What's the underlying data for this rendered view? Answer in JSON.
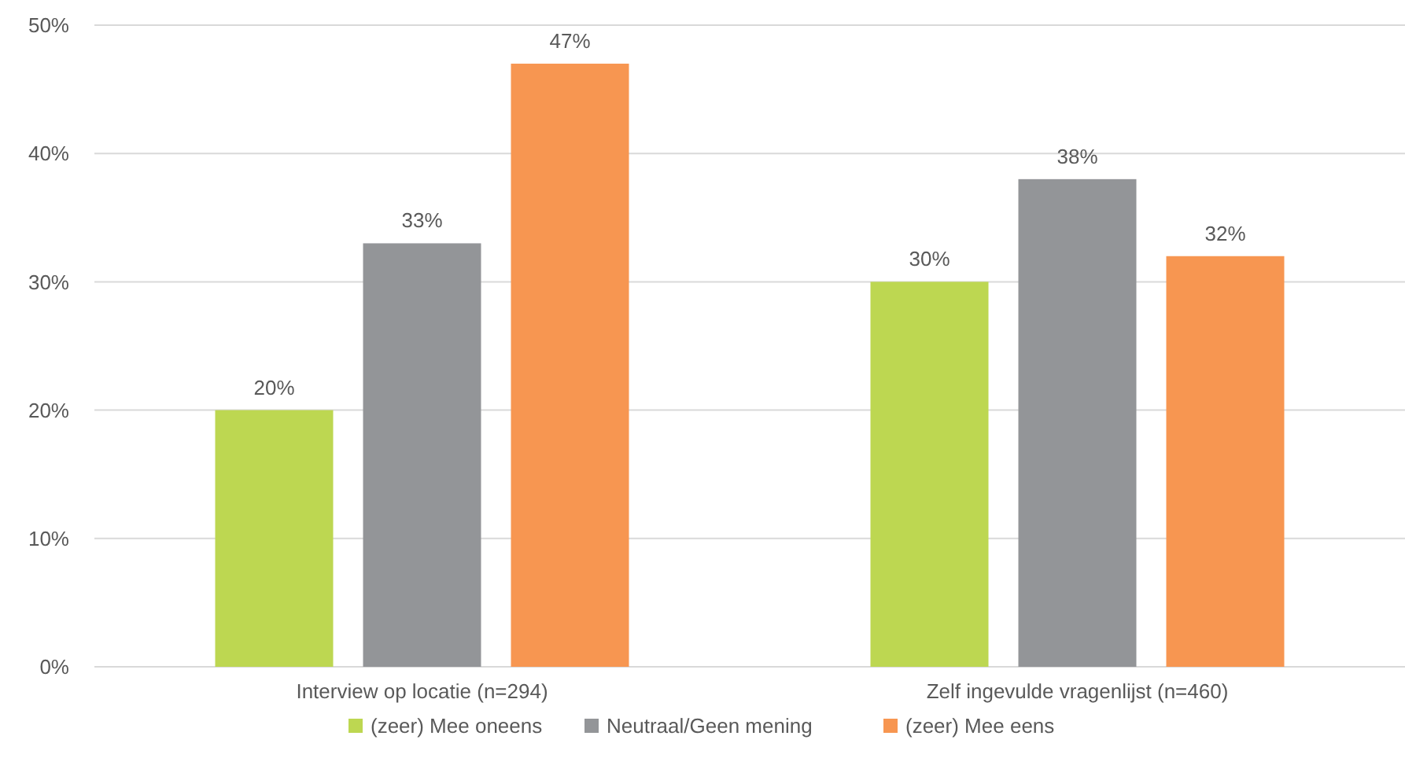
{
  "chart_data": {
    "type": "bar",
    "categories": [
      "Interview op locatie (n=294)",
      "Zelf ingevulde vragenlijst (n=460)"
    ],
    "series": [
      {
        "name": "(zeer) Mee oneens",
        "color": "#bdd751",
        "values": [
          20,
          30
        ],
        "value_labels": [
          "20%",
          "30%"
        ]
      },
      {
        "name": "Neutraal/Geen mening",
        "color": "#939598",
        "values": [
          33,
          38
        ],
        "value_labels": [
          "33%",
          "38%"
        ]
      },
      {
        "name": "(zeer) Mee eens",
        "color": "#f79651",
        "values": [
          47,
          32
        ],
        "value_labels": [
          "47%",
          "32%"
        ]
      }
    ],
    "ylim": [
      0,
      50
    ],
    "yticks": [
      {
        "value": 0,
        "label": "0%"
      },
      {
        "value": 10,
        "label": "10%"
      },
      {
        "value": 20,
        "label": "20%"
      },
      {
        "value": 30,
        "label": "30%"
      },
      {
        "value": 40,
        "label": "40%"
      },
      {
        "value": 50,
        "label": "50%"
      }
    ],
    "grid": "y",
    "legend": "bottom"
  }
}
